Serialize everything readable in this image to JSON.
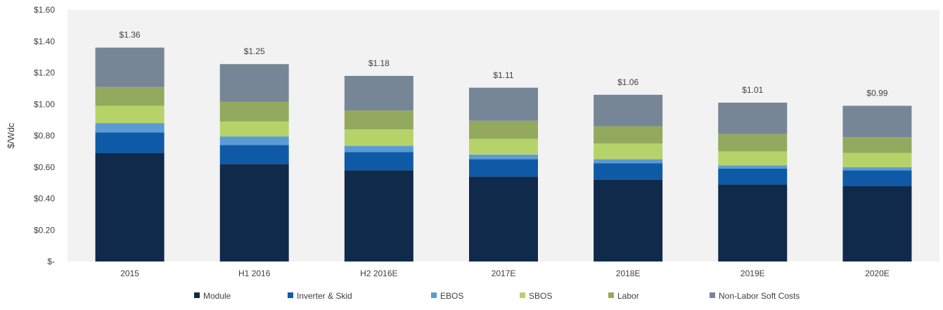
{
  "chart_data": {
    "type": "bar",
    "stacked": true,
    "ylabel": "$/Wdc",
    "ylim": [
      0,
      1.6
    ],
    "y_ticks": [
      0,
      0.2,
      0.4,
      0.6,
      0.8,
      1.0,
      1.2,
      1.4,
      1.6
    ],
    "y_tick_labels": [
      "$-",
      "$0.20",
      "$0.40",
      "$0.60",
      "$0.80",
      "$1.00",
      "$1.20",
      "$1.40",
      "$1.60"
    ],
    "grid": false,
    "legend_position": "bottom",
    "plot_background": "#f2f2f2",
    "categories": [
      "2015",
      "H1 2016",
      "H2 2016E",
      "2017E",
      "2018E",
      "2019E",
      "2020E"
    ],
    "series": [
      {
        "name": "Module",
        "color": "#0f2a4a",
        "values": [
          0.69,
          0.62,
          0.58,
          0.54,
          0.52,
          0.49,
          0.48
        ]
      },
      {
        "name": "Inverter & Skid",
        "color": "#0f5aa6",
        "values": [
          0.13,
          0.12,
          0.115,
          0.11,
          0.105,
          0.1,
          0.1
        ]
      },
      {
        "name": "EBOS",
        "color": "#5b9bd5",
        "values": [
          0.06,
          0.055,
          0.04,
          0.03,
          0.025,
          0.02,
          0.02
        ]
      },
      {
        "name": "SBOS",
        "color": "#b6d36a",
        "values": [
          0.11,
          0.095,
          0.105,
          0.1,
          0.1,
          0.09,
          0.09
        ]
      },
      {
        "name": "Labor",
        "color": "#93a95e",
        "values": [
          0.12,
          0.125,
          0.12,
          0.115,
          0.11,
          0.11,
          0.1
        ]
      },
      {
        "name": "Non-Labor Soft Costs",
        "color": "#768696",
        "values": [
          0.25,
          0.24,
          0.22,
          0.21,
          0.2,
          0.2,
          0.2
        ]
      }
    ],
    "totals": [
      1.36,
      1.25,
      1.18,
      1.11,
      1.06,
      1.01,
      0.99
    ],
    "total_labels": [
      "$1.36",
      "$1.25",
      "$1.18",
      "$1.11",
      "$1.06",
      "$1.01",
      "$0.99"
    ]
  }
}
